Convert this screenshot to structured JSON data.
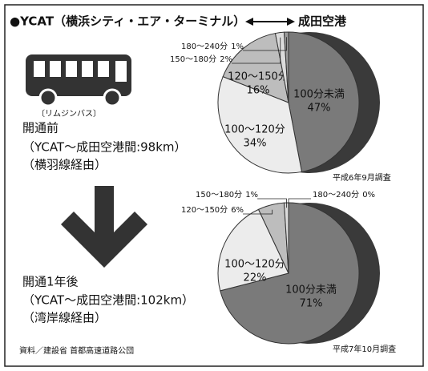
{
  "title": "●YCAT（横浜シティ・エア・ターミナル）",
  "title_dest": "成田空港",
  "bus_label": "〔リムジンバス〕",
  "before": {
    "heading": "開通前",
    "route": "（YCAT〜成田空港間:98km）",
    "via": "（横羽線経由）"
  },
  "after": {
    "heading": "開通1年後",
    "route": "（YCAT〜成田空港間:102km）",
    "via": "（湾岸線経由）"
  },
  "source": "資料／建設省 首都高速道路公団",
  "chart_data": [
    {
      "type": "pie",
      "note": "平成6年9月調査",
      "categories": [
        "100分未満",
        "100〜120分",
        "120〜150分",
        "150〜180分",
        "180〜240分"
      ],
      "values": [
        47,
        34,
        16,
        2,
        1
      ],
      "value_labels": [
        "47%",
        "34%",
        "16%",
        "2%",
        "1%"
      ],
      "colors": [
        "#7a7a7a",
        "#ececec",
        "#bdbdbd",
        "#dcdcdc",
        "#9a9a9a"
      ]
    },
    {
      "type": "pie",
      "note": "平成7年10月調査",
      "categories": [
        "100分未満",
        "100〜120分",
        "120〜150分",
        "150〜180分",
        "180〜240分"
      ],
      "values": [
        71,
        22,
        6,
        1,
        0
      ],
      "value_labels": [
        "71%",
        "22%",
        "6%",
        "1%",
        "0%"
      ],
      "colors": [
        "#7a7a7a",
        "#ececec",
        "#bdbdbd",
        "#dcdcdc",
        "#9a9a9a"
      ]
    }
  ]
}
